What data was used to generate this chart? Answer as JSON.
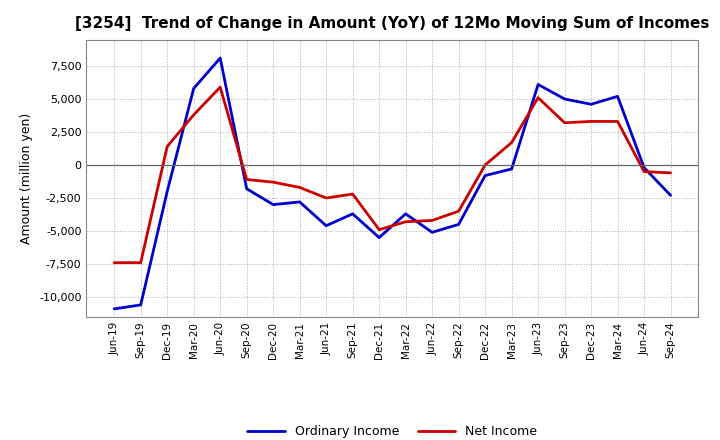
{
  "title": "[3254]  Trend of Change in Amount (YoY) of 12Mo Moving Sum of Incomes",
  "ylabel": "Amount (million yen)",
  "background_color": "#ffffff",
  "grid_color": "#999999",
  "x_labels": [
    "Jun-19",
    "Sep-19",
    "Dec-19",
    "Mar-20",
    "Jun-20",
    "Sep-20",
    "Dec-20",
    "Mar-21",
    "Jun-21",
    "Sep-21",
    "Dec-21",
    "Mar-22",
    "Jun-22",
    "Sep-22",
    "Dec-22",
    "Mar-23",
    "Jun-23",
    "Sep-23",
    "Dec-23",
    "Mar-24",
    "Jun-24",
    "Sep-24"
  ],
  "ordinary_income": [
    -10900,
    -10600,
    -2000,
    5800,
    8100,
    -1800,
    -3000,
    -2800,
    -4600,
    -3700,
    -5500,
    -3700,
    -5100,
    -4500,
    -800,
    -300,
    6100,
    5000,
    4600,
    5200,
    -200,
    -2300
  ],
  "net_income": [
    -7400,
    -7400,
    1400,
    3800,
    5900,
    -1100,
    -1300,
    -1700,
    -2500,
    -2200,
    -4900,
    -4300,
    -4200,
    -3500,
    0,
    1700,
    5100,
    3200,
    3300,
    3300,
    -500,
    -600
  ],
  "ordinary_color": "#0000cc",
  "net_color": "#cc0000",
  "ylim": [
    -11500,
    9500
  ],
  "yticks": [
    -10000,
    -7500,
    -5000,
    -2500,
    0,
    2500,
    5000,
    7500
  ],
  "line_width": 2.0,
  "legend_ordinary": "Ordinary Income",
  "legend_net": "Net Income"
}
